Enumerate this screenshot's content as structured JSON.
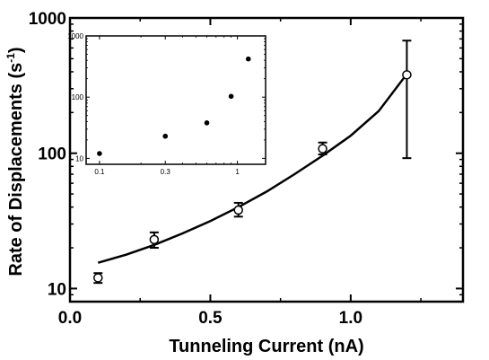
{
  "chart_data": [
    {
      "type": "scatter",
      "title": "",
      "xlabel": "Tunneling Current (nA)",
      "ylabel": "Rate of Displacements (s",
      "ylabel_sup": "-1",
      "ylabel_close": ")",
      "xlim": [
        0.0,
        1.4
      ],
      "ylim": [
        8,
        1000
      ],
      "yscale": "log",
      "grid": false,
      "x_ticks": [
        {
          "value": 0.0,
          "label": "0.0"
        },
        {
          "value": 0.5,
          "label": "0.5"
        },
        {
          "value": 1.0,
          "label": "1.0"
        }
      ],
      "y_ticks": [
        {
          "value": 10,
          "label": "10"
        },
        {
          "value": 100,
          "label": "100"
        },
        {
          "value": 1000,
          "label": "1000"
        }
      ],
      "series": [
        {
          "marker": "open-circle",
          "points": [
            {
              "x": 0.1,
              "y": 12,
              "ylo": 11,
              "yhi": 13
            },
            {
              "x": 0.3,
              "y": 23,
              "ylo": 20,
              "yhi": 26
            },
            {
              "x": 0.6,
              "y": 38,
              "ylo": 34,
              "yhi": 43
            },
            {
              "x": 0.9,
              "y": 108,
              "ylo": 98,
              "yhi": 120
            },
            {
              "x": 1.2,
              "y": 380,
              "ylo": 92,
              "yhi": 680
            }
          ]
        },
        {
          "marker": "line",
          "points": [
            {
              "x": 0.1,
              "y": 15.5
            },
            {
              "x": 0.2,
              "y": 17.8
            },
            {
              "x": 0.3,
              "y": 21
            },
            {
              "x": 0.4,
              "y": 25.5
            },
            {
              "x": 0.5,
              "y": 31.5
            },
            {
              "x": 0.6,
              "y": 40
            },
            {
              "x": 0.7,
              "y": 52
            },
            {
              "x": 0.8,
              "y": 70
            },
            {
              "x": 0.9,
              "y": 96
            },
            {
              "x": 1.0,
              "y": 135
            },
            {
              "x": 1.1,
              "y": 205
            },
            {
              "x": 1.2,
              "y": 385
            }
          ]
        }
      ]
    },
    {
      "type": "scatter",
      "title": "",
      "xscale": "log",
      "yscale": "log",
      "xlim": [
        0.08,
        1.6
      ],
      "ylim": [
        8,
        1000
      ],
      "x_ticks": [
        {
          "value": 0.1,
          "label": "0.1"
        },
        {
          "value": 0.3,
          "label": "0.3"
        },
        {
          "value": 1,
          "label": "1"
        }
      ],
      "y_ticks": [
        {
          "value": 10,
          "label": "10"
        },
        {
          "value": 100,
          "label": "100"
        },
        {
          "value": 1000,
          "label": "1000"
        }
      ],
      "series": [
        {
          "marker": "filled-circle",
          "points": [
            {
              "x": 0.1,
              "y": 12
            },
            {
              "x": 0.3,
              "y": 23
            },
            {
              "x": 0.6,
              "y": 38
            },
            {
              "x": 0.9,
              "y": 103
            },
            {
              "x": 1.2,
              "y": 420
            }
          ]
        }
      ]
    }
  ]
}
